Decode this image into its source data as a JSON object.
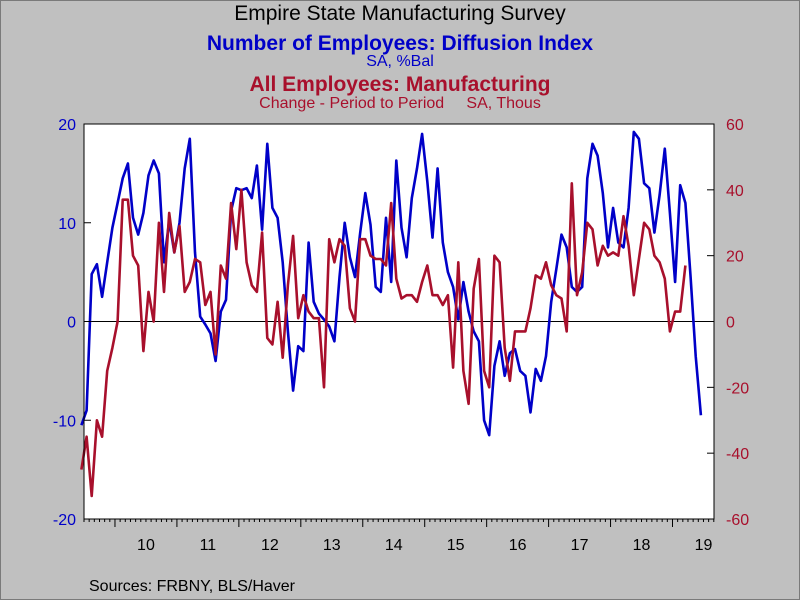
{
  "titles": {
    "line1": "Empire State Manufacturing Survey",
    "line2": "Number of Employees: Diffusion Index",
    "line3": "SA, %Bal",
    "line4": "All Employees: Manufacturing",
    "line5": "Change - Period to Period     SA, Thous"
  },
  "sources": "Sources:  FRBNY, BLS/Haver",
  "colors": {
    "background": "#c0c0c0",
    "plot": "#ffffff",
    "left_series": "#0000c8",
    "right_series": "#a8102c"
  },
  "chart_data": {
    "type": "line",
    "x_axis": {
      "range": [
        2009.5,
        2019.67
      ],
      "tick_labels": [
        "10",
        "11",
        "12",
        "13",
        "14",
        "15",
        "16",
        "17",
        "18",
        "19"
      ],
      "tick_years": [
        2010,
        2011,
        2012,
        2013,
        2014,
        2015,
        2016,
        2017,
        2018,
        2019
      ]
    },
    "left_axis": {
      "range": [
        -20,
        20
      ],
      "ticks": [
        "-20",
        "-10",
        "0",
        "10",
        "20"
      ],
      "tick_values": [
        -20,
        -10,
        0,
        10,
        20
      ]
    },
    "right_axis": {
      "range": [
        -60,
        60
      ],
      "ticks": [
        "-60",
        "-40",
        "-20",
        "0",
        "20",
        "40",
        "60"
      ],
      "tick_values": [
        -60,
        -40,
        -20,
        0,
        20,
        40,
        60
      ]
    },
    "reference_line": 0,
    "grid": false,
    "series": [
      {
        "name": "Number of Employees: Diffusion Index",
        "axis": "left",
        "start": [
          2009,
          6
        ],
        "values": [
          -10.5,
          -9,
          4.8,
          5.8,
          2.5,
          6,
          9.5,
          12,
          14.5,
          16,
          10.5,
          8.8,
          11,
          14.8,
          16.3,
          15,
          6,
          10.2,
          7,
          10,
          15.5,
          18.5,
          7,
          0.5,
          -0.3,
          -1.2,
          -4,
          1,
          2.2,
          11.2,
          13.5,
          13.3,
          13.5,
          12.5,
          15.8,
          9.3,
          18,
          11.5,
          10.5,
          6,
          -1,
          -7,
          -2.5,
          -3,
          8,
          2,
          0.8,
          0.2,
          -0.5,
          -2,
          4.5,
          10,
          6.5,
          4.5,
          9,
          13,
          9.8,
          3.5,
          3,
          10.5,
          4,
          16.3,
          9.5,
          6.5,
          12.5,
          15.5,
          19,
          14.2,
          8.5,
          15.5,
          8,
          5,
          3.5,
          0.2,
          4,
          1,
          -1,
          -2,
          -10,
          -11.5,
          -4.5,
          -2,
          -5.5,
          -3.2,
          -2.8,
          -5,
          -5.5,
          -9.2,
          -4.8,
          -6,
          -3.5,
          2,
          5.3,
          8.8,
          7.5,
          3.5,
          3,
          3.5,
          14.5,
          18,
          16.8,
          13,
          7.5,
          11.5,
          8,
          7.5,
          11.5,
          19.2,
          18.5,
          14,
          13.5,
          9,
          12.8,
          17.5,
          11,
          4,
          13.8,
          12,
          4.5,
          -3.5,
          -9.5
        ]
      },
      {
        "name": "All Employees: Manufacturing",
        "axis": "right",
        "start": [
          2009,
          6
        ],
        "values": [
          -45,
          -35,
          -53,
          -30,
          -35,
          -15,
          -8,
          0,
          37,
          37,
          20,
          17,
          -9,
          9,
          0,
          30,
          9,
          33,
          21,
          29,
          9,
          12,
          19,
          18,
          5,
          9,
          -10,
          17,
          13,
          36,
          22,
          40,
          18,
          11,
          9,
          27,
          -5,
          -7,
          6,
          -11,
          11,
          26,
          1,
          8,
          3,
          1,
          1,
          -20,
          25,
          18,
          25,
          23,
          4,
          0,
          25,
          25,
          20,
          19,
          19,
          17,
          36,
          13,
          7,
          8,
          8,
          6,
          12,
          17,
          8,
          8,
          5,
          8,
          -14,
          18,
          -15,
          -25,
          10,
          19,
          -15,
          -20,
          20,
          18,
          -8,
          -18,
          -3,
          -3,
          -3,
          4,
          14,
          13,
          18,
          11,
          8,
          7,
          -3,
          42,
          8,
          15,
          30,
          28,
          17,
          23,
          20,
          21,
          20,
          32,
          23,
          8,
          19,
          30,
          28,
          20,
          18,
          13,
          -3,
          3,
          3,
          17
        ]
      }
    ]
  }
}
